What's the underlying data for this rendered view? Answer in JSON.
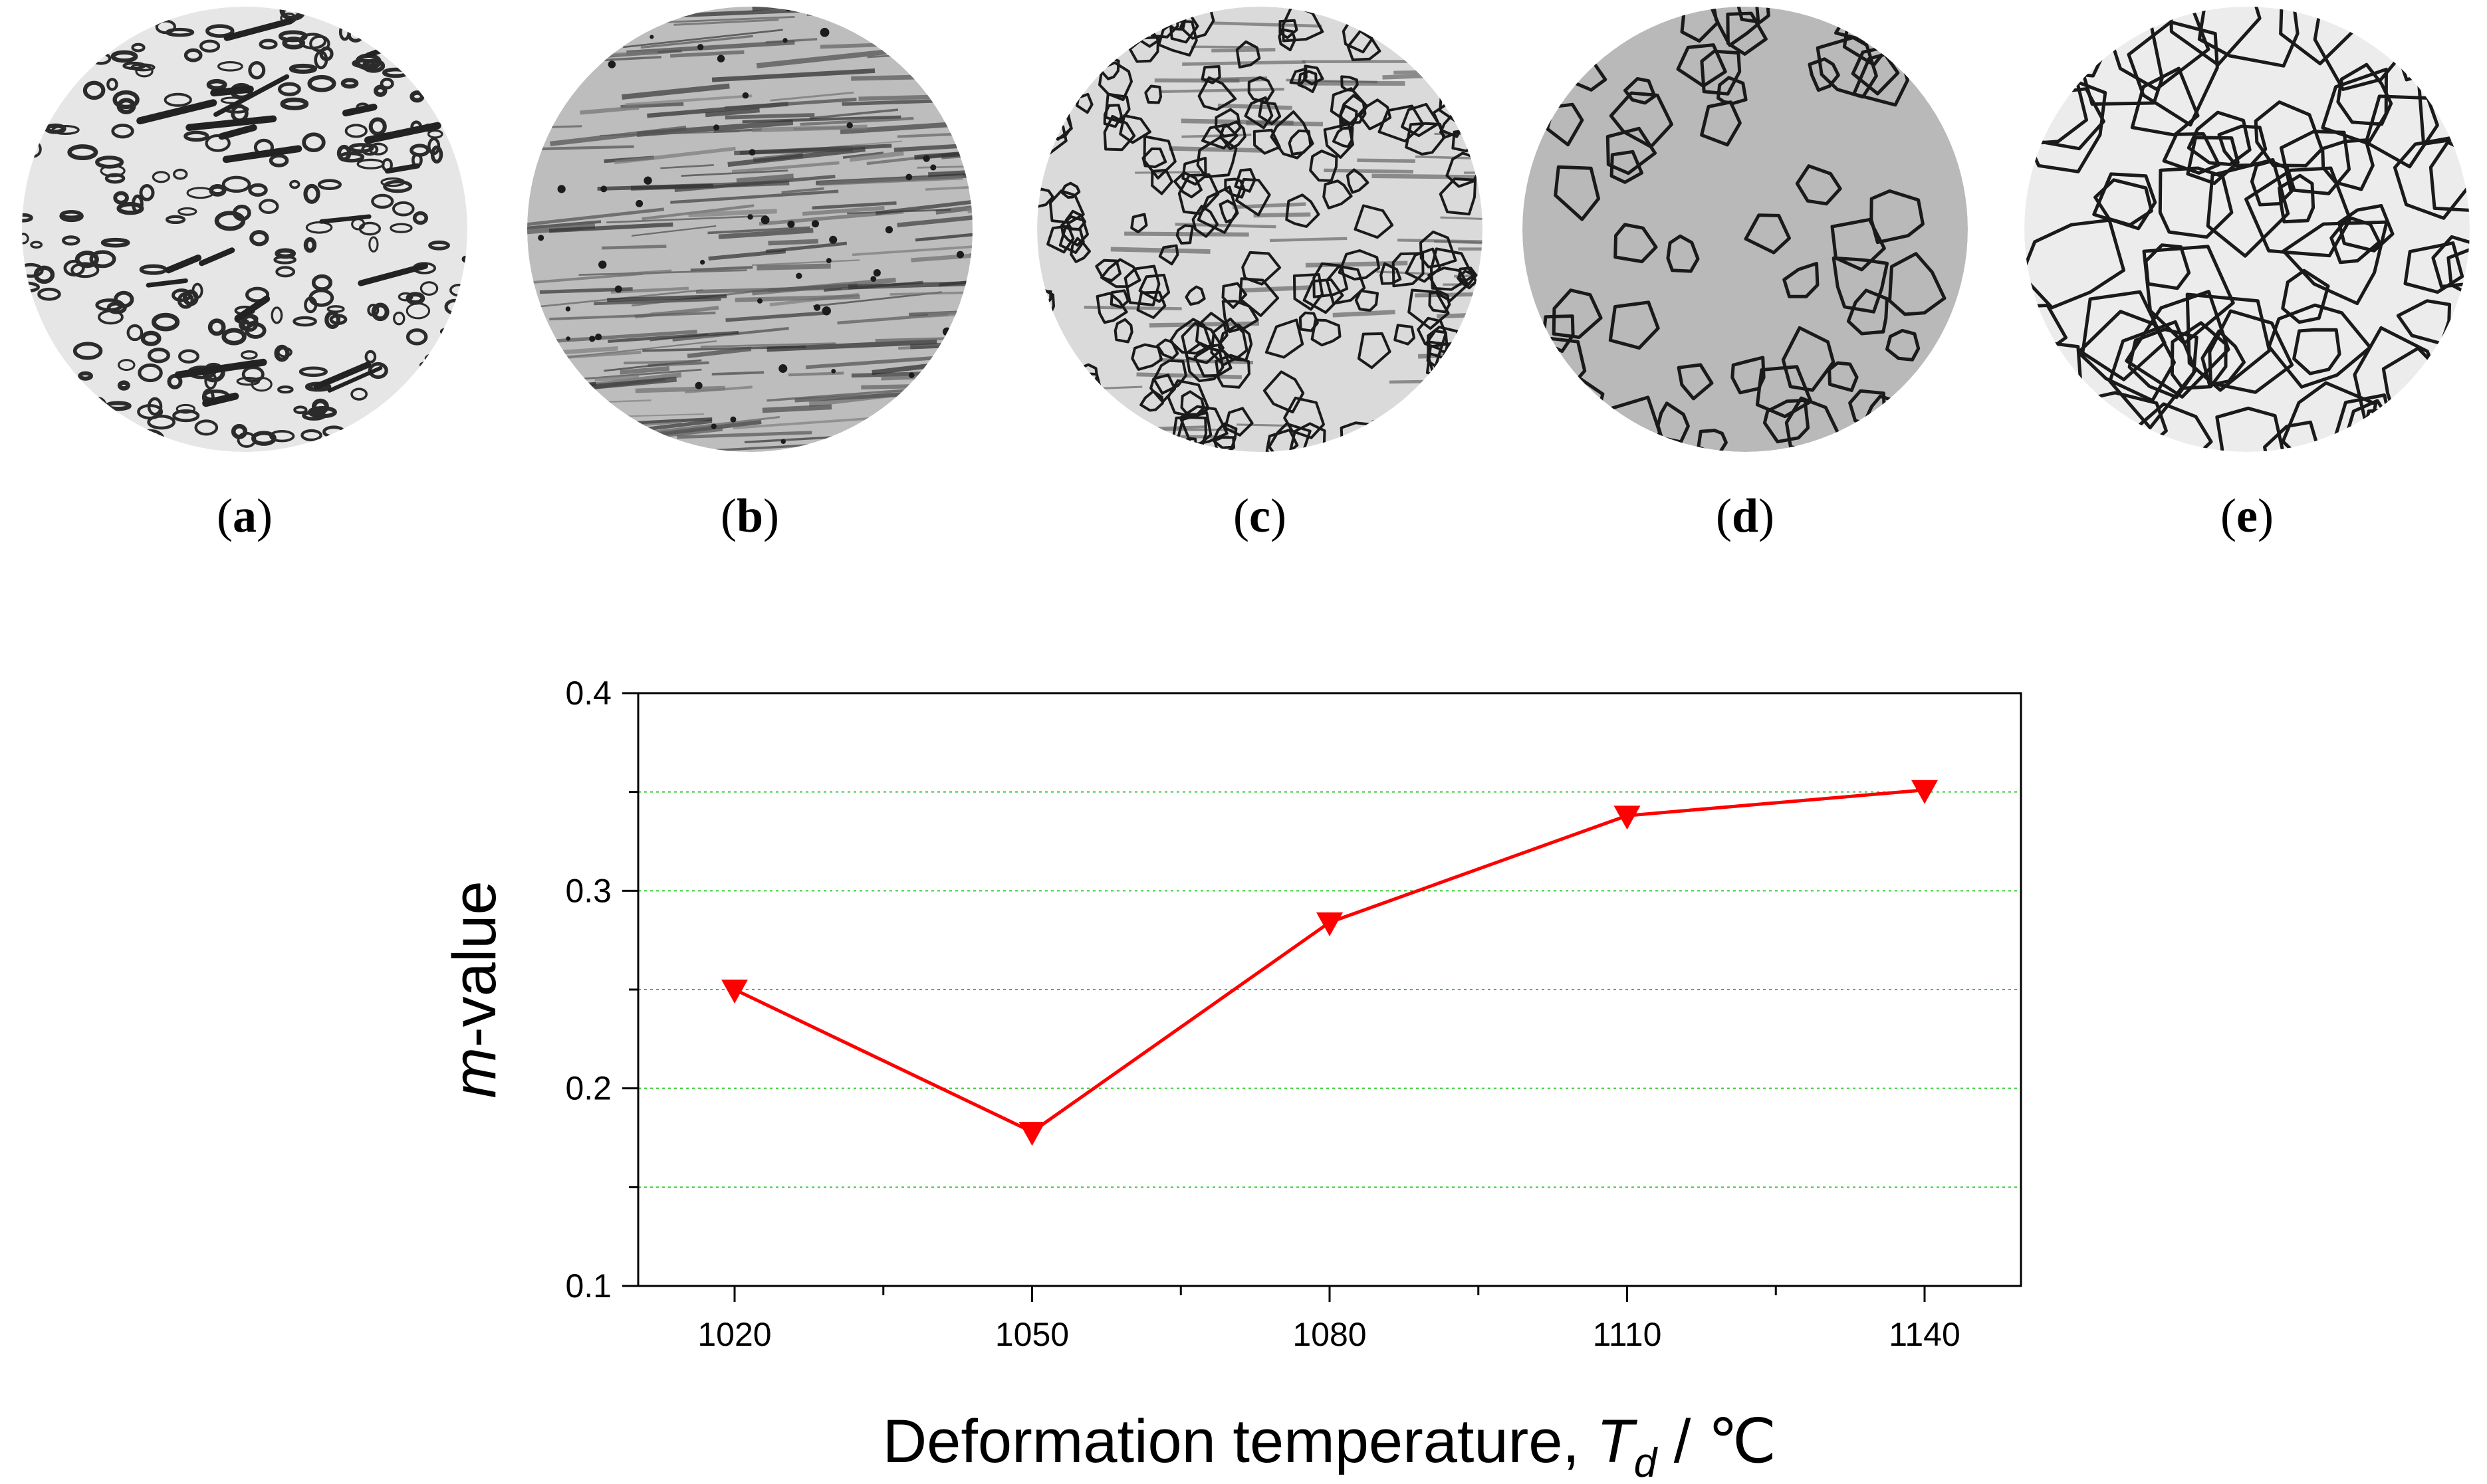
{
  "panels": [
    {
      "label": "a",
      "texture": "dendritic"
    },
    {
      "label": "b",
      "texture": "streaked"
    },
    {
      "label": "c",
      "texture": "mixed"
    },
    {
      "label": "d",
      "texture": "sparse-grains"
    },
    {
      "label": "e",
      "texture": "equiaxed-grains"
    }
  ],
  "chart_data": {
    "type": "line",
    "title": "",
    "xlabel_main": "Deformation temperature, ",
    "xlabel_var": "T",
    "xlabel_sub": "d",
    "xlabel_unit": " / ℃",
    "ylabel_var": "m",
    "ylabel_rest": "-value",
    "x": [
      1020,
      1050,
      1080,
      1110,
      1140
    ],
    "xticks": [
      "1020",
      "1050",
      "1080",
      "1110",
      "1140"
    ],
    "xlim": [
      1020,
      1140
    ],
    "ylim": [
      0.1,
      0.4
    ],
    "yticks": [
      "0.1",
      "0.2",
      "0.3",
      "0.4"
    ],
    "grid_y": [
      0.15,
      0.2,
      0.25,
      0.3,
      0.35
    ],
    "grid": "horizontal dotted",
    "series": [
      {
        "values": [
          0.25,
          0.178,
          0.284,
          0.338,
          0.351
        ],
        "marker": "triangle-down",
        "color": "#ff0000"
      }
    ],
    "colors": {
      "series": "#ff0000",
      "grid": "#33cc33",
      "axis": "#000000"
    }
  }
}
